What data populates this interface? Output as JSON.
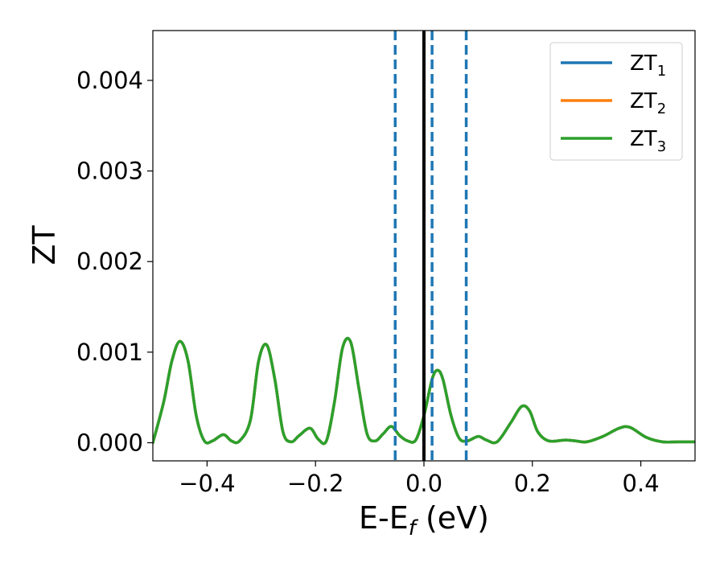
{
  "chart_data": {
    "type": "line",
    "xlabel_main": "E-E",
    "xlabel_sub": "f",
    "xlabel_unit": " (eV)",
    "ylabel": "ZT",
    "xlim": [
      -0.5,
      0.5
    ],
    "ylim": [
      -0.0002,
      0.00455
    ],
    "x_ticks": [
      -0.4,
      -0.2,
      0.0,
      0.2,
      0.4
    ],
    "x_tick_labels": [
      "−0.4",
      "−0.2",
      "0.0",
      "0.2",
      "0.4"
    ],
    "y_ticks": [
      0.0,
      0.001,
      0.002,
      0.003,
      0.004
    ],
    "y_tick_labels": [
      "0.000",
      "0.001",
      "0.002",
      "0.003",
      "0.004"
    ],
    "grid": false,
    "legend_position": "top-right",
    "fermi_line": {
      "x": 0.0,
      "color": "#000000"
    },
    "dashed_lines": {
      "x": [
        -0.053,
        0.015,
        0.078
      ],
      "color": "#1f77b4"
    },
    "series": [
      {
        "name_main": "ZT",
        "name_sub": "1",
        "color": "#1f77b4",
        "x": [
          -0.5,
          -0.48,
          -0.465,
          -0.45,
          -0.435,
          -0.42,
          -0.405,
          -0.39,
          -0.37,
          -0.355,
          -0.34,
          -0.32,
          -0.305,
          -0.29,
          -0.275,
          -0.26,
          -0.245,
          -0.23,
          -0.21,
          -0.195,
          -0.18,
          -0.165,
          -0.15,
          -0.135,
          -0.12,
          -0.105,
          -0.09,
          -0.075,
          -0.06,
          -0.045,
          -0.03,
          -0.015,
          0.0,
          0.015,
          0.025,
          0.035,
          0.05,
          0.065,
          0.08,
          0.1,
          0.115,
          0.135,
          0.16,
          0.18,
          0.195,
          0.21,
          0.23,
          0.26,
          0.28,
          0.3,
          0.33,
          0.36,
          0.38,
          0.41,
          0.44,
          0.47,
          0.5
        ],
        "y": [
          0.0,
          0.00045,
          0.0009,
          0.00112,
          0.0009,
          0.0003,
          2e-05,
          2e-05,
          9e-05,
          2e-05,
          2e-05,
          0.00025,
          0.0009,
          0.00108,
          0.0007,
          0.00012,
          1e-05,
          8e-05,
          0.00016,
          4e-05,
          2e-05,
          0.00045,
          0.00105,
          0.00111,
          0.0006,
          0.0001,
          2e-05,
          0.0001,
          0.00018,
          8e-05,
          2e-05,
          3e-05,
          0.0003,
          0.0007,
          0.0008,
          0.0007,
          0.0003,
          5e-05,
          2e-05,
          7e-05,
          3e-05,
          1e-05,
          0.00022,
          0.0004,
          0.00035,
          0.00012,
          2e-05,
          3e-05,
          2e-05,
          1e-05,
          7e-05,
          0.00016,
          0.00017,
          6e-05,
          1e-05,
          1e-05,
          1e-05
        ]
      },
      {
        "name_main": "ZT",
        "name_sub": "2",
        "color": "#ff7f0e",
        "x": [
          -0.5,
          -0.48,
          -0.465,
          -0.45,
          -0.435,
          -0.42,
          -0.405,
          -0.39,
          -0.37,
          -0.355,
          -0.34,
          -0.32,
          -0.305,
          -0.29,
          -0.275,
          -0.26,
          -0.245,
          -0.23,
          -0.21,
          -0.195,
          -0.18,
          -0.165,
          -0.15,
          -0.135,
          -0.12,
          -0.105,
          -0.09,
          -0.075,
          -0.06,
          -0.045,
          -0.03,
          -0.015,
          0.0,
          0.015,
          0.025,
          0.035,
          0.05,
          0.065,
          0.08,
          0.1,
          0.115,
          0.135,
          0.16,
          0.18,
          0.195,
          0.21,
          0.23,
          0.26,
          0.28,
          0.3,
          0.33,
          0.36,
          0.38,
          0.41,
          0.44,
          0.47,
          0.5
        ],
        "y": [
          0.0,
          0.00045,
          0.0009,
          0.00112,
          0.0009,
          0.0003,
          2e-05,
          2e-05,
          9e-05,
          2e-05,
          2e-05,
          0.00025,
          0.0009,
          0.00108,
          0.0007,
          0.00012,
          1e-05,
          8e-05,
          0.00016,
          4e-05,
          2e-05,
          0.00045,
          0.00105,
          0.00111,
          0.0006,
          0.0001,
          2e-05,
          0.0001,
          0.00018,
          8e-05,
          2e-05,
          3e-05,
          0.0003,
          0.0007,
          0.0008,
          0.0007,
          0.0003,
          5e-05,
          2e-05,
          7e-05,
          3e-05,
          1e-05,
          0.00022,
          0.0004,
          0.00035,
          0.00012,
          2e-05,
          3e-05,
          2e-05,
          1e-05,
          7e-05,
          0.00016,
          0.00017,
          6e-05,
          1e-05,
          1e-05,
          1e-05
        ]
      },
      {
        "name_main": "ZT",
        "name_sub": "3",
        "color": "#2ca02c",
        "x": [
          -0.5,
          -0.48,
          -0.465,
          -0.45,
          -0.435,
          -0.42,
          -0.405,
          -0.39,
          -0.37,
          -0.355,
          -0.34,
          -0.32,
          -0.305,
          -0.29,
          -0.275,
          -0.26,
          -0.245,
          -0.23,
          -0.21,
          -0.195,
          -0.18,
          -0.165,
          -0.15,
          -0.135,
          -0.12,
          -0.105,
          -0.09,
          -0.075,
          -0.06,
          -0.045,
          -0.03,
          -0.015,
          0.0,
          0.015,
          0.025,
          0.035,
          0.05,
          0.065,
          0.08,
          0.1,
          0.115,
          0.135,
          0.16,
          0.18,
          0.195,
          0.21,
          0.23,
          0.26,
          0.28,
          0.3,
          0.33,
          0.36,
          0.38,
          0.41,
          0.44,
          0.47,
          0.5
        ],
        "y": [
          0.0,
          0.00045,
          0.0009,
          0.00112,
          0.0009,
          0.0003,
          2e-05,
          2e-05,
          9e-05,
          2e-05,
          2e-05,
          0.00025,
          0.0009,
          0.00108,
          0.0007,
          0.00012,
          1e-05,
          8e-05,
          0.00016,
          4e-05,
          2e-05,
          0.00045,
          0.00105,
          0.00111,
          0.0006,
          0.0001,
          2e-05,
          0.0001,
          0.00018,
          8e-05,
          2e-05,
          3e-05,
          0.0003,
          0.0007,
          0.0008,
          0.0007,
          0.0003,
          5e-05,
          2e-05,
          7e-05,
          3e-05,
          1e-05,
          0.00022,
          0.0004,
          0.00035,
          0.00012,
          2e-05,
          3e-05,
          2e-05,
          1e-05,
          7e-05,
          0.00016,
          0.00017,
          6e-05,
          1e-05,
          1e-05,
          1e-05
        ]
      }
    ]
  }
}
